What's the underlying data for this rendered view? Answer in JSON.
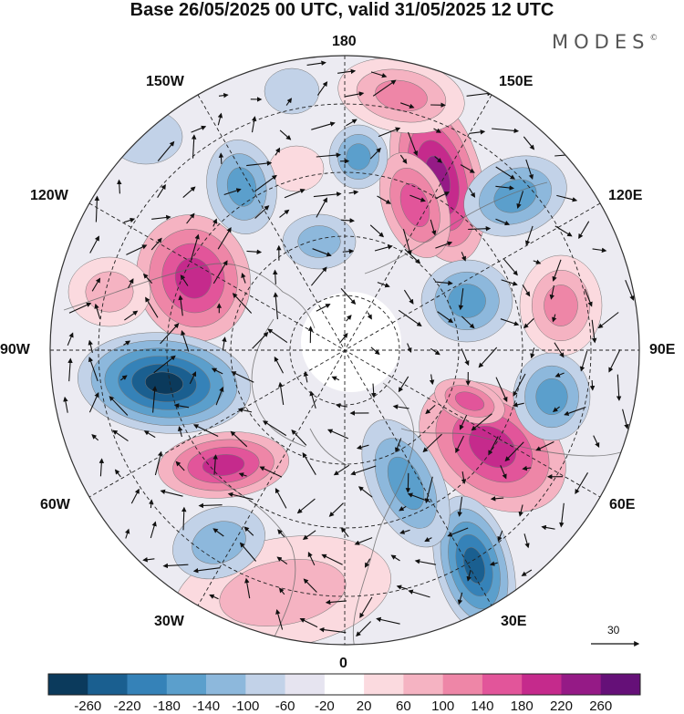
{
  "header": {
    "title": "Base 26/05/2025 00 UTC, valid 31/05/2025 12 UTC",
    "brand": "MODES",
    "brand_mark": "©"
  },
  "map": {
    "projection": "north-polar-stereographic",
    "meridian_labels": {
      "top": "180",
      "bottom": "0",
      "left": "90W",
      "right": "90E",
      "upper_left_1": "150W",
      "upper_left_2": "120W",
      "lower_left_1": "60W",
      "lower_left_2": "30W",
      "upper_right_1": "150E",
      "upper_right_2": "120E",
      "lower_right_1": "60E",
      "lower_right_2": "30E"
    },
    "reference_vector": {
      "label": "30"
    }
  },
  "legend": {
    "colors": [
      "#0b3a5c",
      "#1a5f90",
      "#3582b8",
      "#5b9fcc",
      "#8db8dc",
      "#c2d2e8",
      "#e6e4f0",
      "#ffffff",
      "#fbdadf",
      "#f5b3c2",
      "#ee86a7",
      "#e2559a",
      "#c52a8c",
      "#951a86",
      "#651078"
    ],
    "labels": [
      "-260",
      "-220",
      "-180",
      "-140",
      "-100",
      "-60",
      "-20",
      "20",
      "60",
      "100",
      "140",
      "180",
      "220",
      "260"
    ]
  }
}
